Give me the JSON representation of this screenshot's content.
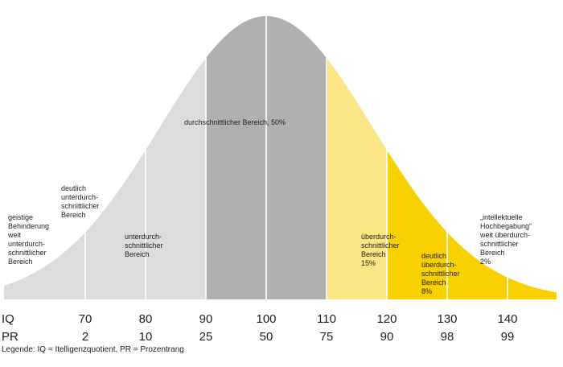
{
  "chart_data": {
    "type": "area",
    "title": "",
    "distribution": "normal",
    "mean": 100,
    "sd": 15,
    "xlim": [
      52,
      150
    ],
    "boundaries": [
      70,
      80,
      90,
      110,
      120,
      130,
      140
    ],
    "regions": [
      {
        "key": "weit-unter",
        "from": 52,
        "to": 70,
        "color": "#dcdcdc",
        "lines": [
          "geistige",
          "Behinderung",
          "weit",
          "unterdurch-",
          "schnittlicher",
          "Bereich"
        ]
      },
      {
        "key": "deutlich-unter",
        "from": 70,
        "to": 80,
        "color": "#dcdcdc",
        "lines": [
          "deutlich",
          "unterdurch-",
          "schnittlicher",
          "Bereich"
        ]
      },
      {
        "key": "unter",
        "from": 80,
        "to": 90,
        "color": "#dcdcdc",
        "lines": [
          "unterdurch-",
          "schnittlicher",
          "Bereich"
        ]
      },
      {
        "key": "durchschnitt",
        "from": 90,
        "to": 110,
        "color": "#b0b0b2",
        "lines": [
          "durchschnittlicher Bereich, 50%"
        ]
      },
      {
        "key": "ueber",
        "from": 110,
        "to": 120,
        "color": "#fce584",
        "lines": [
          "überdurch-",
          "schnittlicher",
          "Bereich",
          "15%"
        ]
      },
      {
        "key": "deutlich-ueber",
        "from": 120,
        "to": 130,
        "color": "#f9d000",
        "lines": [
          "deutlich",
          "überdurch-",
          "schnittlicher",
          "Bereich",
          "8%"
        ]
      },
      {
        "key": "hochbegabung",
        "from": 130,
        "to": 150,
        "color": "#f9d000",
        "lines": [
          "„intellektuelle",
          "Hochbegabung“",
          "weit überdurch-",
          "schnittlicher",
          "Bereich",
          "2%"
        ]
      }
    ],
    "axis": {
      "iq_label": "IQ",
      "pr_label": "PR",
      "ticks": [
        {
          "iq": 70,
          "pr": 2
        },
        {
          "iq": 80,
          "pr": 10
        },
        {
          "iq": 90,
          "pr": 25
        },
        {
          "iq": 100,
          "pr": 50
        },
        {
          "iq": 110,
          "pr": 75
        },
        {
          "iq": 120,
          "pr": 90
        },
        {
          "iq": 130,
          "pr": 98
        },
        {
          "iq": 140,
          "pr": 99
        }
      ]
    },
    "legend": "Legende: IQ = Itelligenzquotient, PR = Prozentrang"
  }
}
